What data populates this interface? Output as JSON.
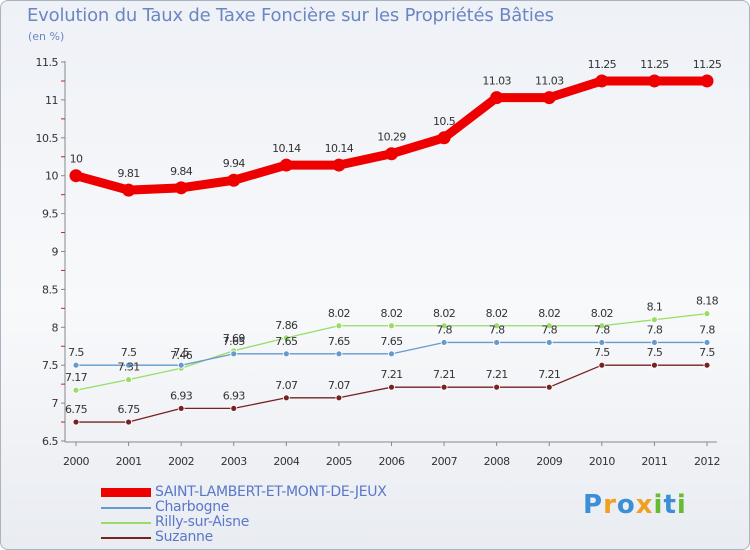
{
  "chart_data": {
    "type": "line",
    "title": "Evolution du Taux de Taxe Foncière sur les Propriétés Bâties",
    "unit_label": "(en %)",
    "xlabel": "",
    "ylabel": "",
    "categories": [
      "2000",
      "2001",
      "2002",
      "2003",
      "2004",
      "2005",
      "2006",
      "2007",
      "2008",
      "2009",
      "2010",
      "2011",
      "2012"
    ],
    "ylim": [
      6.5,
      11.5
    ],
    "yticks": [
      "6.5",
      "7",
      "7.5",
      "8",
      "8.5",
      "9",
      "9.5",
      "10",
      "10.5",
      "11",
      "11.5"
    ],
    "grid": false,
    "legend_position": "bottom-left",
    "series": [
      {
        "name": "SAINT-LAMBERT-ET-MONT-DE-JEUX",
        "color": "#ee0000",
        "values": [
          10,
          9.81,
          9.84,
          9.94,
          10.14,
          10.14,
          10.29,
          10.5,
          11.03,
          11.03,
          11.25,
          11.25,
          11.25
        ],
        "labels": [
          "10",
          "9.81",
          "9.84",
          "9.94",
          "10.14",
          "10.14",
          "10.29",
          "10.5",
          "11.03",
          "11.03",
          "11.25",
          "11.25",
          "11.25"
        ]
      },
      {
        "name": "Charbogne",
        "color": "#6699cc",
        "values": [
          7.5,
          7.5,
          7.5,
          7.65,
          7.65,
          7.65,
          7.65,
          7.8,
          7.8,
          7.8,
          7.8,
          7.8,
          7.8
        ],
        "labels": [
          "7.5",
          "7.5",
          "7.5",
          "7.65",
          "7.65",
          "7.65",
          "7.65",
          "7.8",
          "7.8",
          "7.8",
          "7.8",
          "7.8",
          "7.8"
        ]
      },
      {
        "name": "Rilly-sur-Aisne",
        "color": "#99dd66",
        "values": [
          7.17,
          7.31,
          7.46,
          7.69,
          7.86,
          8.02,
          8.02,
          8.02,
          8.02,
          8.02,
          8.02,
          8.1,
          8.18
        ],
        "labels": [
          "7.17",
          "7.31",
          "7.46",
          "7.69",
          "7.86",
          "8.02",
          "8.02",
          "8.02",
          "8.02",
          "8.02",
          "8.02",
          "8.1",
          "8.18"
        ]
      },
      {
        "name": "Suzanne",
        "color": "#772222",
        "values": [
          6.75,
          6.75,
          6.93,
          6.93,
          7.07,
          7.07,
          7.21,
          7.21,
          7.21,
          7.21,
          7.5,
          7.5,
          7.5
        ],
        "labels": [
          "6.75",
          "6.75",
          "6.93",
          "6.93",
          "7.07",
          "7.07",
          "7.21",
          "7.21",
          "7.21",
          "7.21",
          "7.5",
          "7.5",
          "7.5"
        ]
      }
    ]
  },
  "brand": {
    "text": "Proxiti",
    "letters": [
      "P",
      "r",
      "o",
      "x",
      "i",
      "t",
      "i"
    ],
    "colors": [
      "#3a8fd6",
      "#f0a020",
      "#3a8fd6",
      "#f0a020",
      "#66bb33",
      "#3a8fd6",
      "#66bb33"
    ]
  }
}
